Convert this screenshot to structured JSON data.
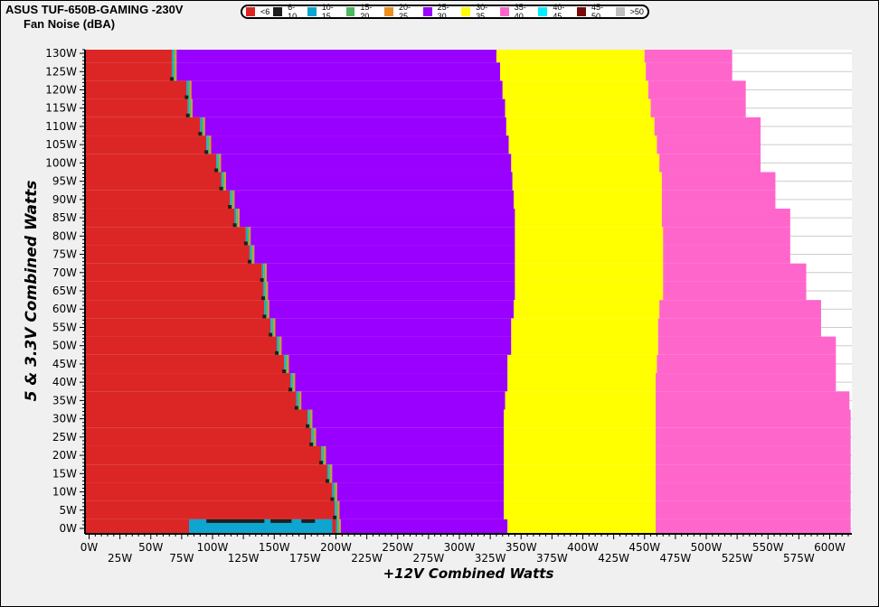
{
  "chart_data": {
    "type": "heatmap",
    "title": "ASUS TUF-650B-GAMING -230V",
    "subtitle": "Fan Noise (dBA)",
    "xlabel": "+12V Combined Watts",
    "ylabel": "5 & 3.3V Combined Watts",
    "xlim": [
      0,
      617
    ],
    "ylim": [
      0,
      131
    ],
    "x_ticks": [
      "0W",
      "25W",
      "50W",
      "75W",
      "100W",
      "125W",
      "150W",
      "175W",
      "200W",
      "225W",
      "250W",
      "275W",
      "300W",
      "325W",
      "350W",
      "375W",
      "400W",
      "425W",
      "450W",
      "475W",
      "500W",
      "525W",
      "550W",
      "575W",
      "600W"
    ],
    "x_tick_values": [
      0,
      25,
      50,
      75,
      100,
      125,
      150,
      175,
      200,
      225,
      250,
      275,
      300,
      325,
      350,
      375,
      400,
      425,
      450,
      475,
      500,
      525,
      550,
      575,
      600
    ],
    "y_ticks": [
      "0W",
      "5W",
      "10W",
      "15W",
      "20W",
      "25W",
      "30W",
      "35W",
      "40W",
      "45W",
      "50W",
      "55W",
      "60W",
      "65W",
      "70W",
      "75W",
      "80W",
      "85W",
      "90W",
      "95W",
      "100W",
      "105W",
      "110W",
      "115W",
      "120W",
      "125W",
      "130W"
    ],
    "y_tick_values": [
      0,
      5,
      10,
      15,
      20,
      25,
      30,
      35,
      40,
      45,
      50,
      55,
      60,
      65,
      70,
      75,
      80,
      85,
      90,
      95,
      100,
      105,
      110,
      115,
      120,
      125,
      130
    ],
    "grid": true,
    "legend_placement": "top",
    "legend": [
      {
        "label": "<6",
        "color": "#dc2626"
      },
      {
        "label": "6-10",
        "color": "#1e1e1e"
      },
      {
        "label": "10-15",
        "color": "#0ea5d0"
      },
      {
        "label": "15-20",
        "color": "#4cb860"
      },
      {
        "label": "20-25",
        "color": "#ea9020"
      },
      {
        "label": "25-30",
        "color": "#9900ff"
      },
      {
        "label": "30-35",
        "color": "#ffff00"
      },
      {
        "label": "35-40",
        "color": "#ff66cc"
      },
      {
        "label": "40-45",
        "color": "#00eeff"
      },
      {
        "label": "45-50",
        "color": "#7a0a0a"
      },
      {
        "label": ">50",
        "color": "#c0c0c0"
      }
    ],
    "rows_5v33_w": [
      0,
      5,
      10,
      15,
      20,
      25,
      30,
      35,
      40,
      45,
      50,
      55,
      60,
      65,
      70,
      75,
      80,
      85,
      90,
      95,
      100,
      105,
      110,
      115,
      120,
      125,
      130
    ],
    "boundary_lt6_to_25_30_w": [
      200,
      199,
      197,
      193,
      188,
      180,
      177,
      168,
      163,
      158,
      152,
      147,
      142,
      141,
      140,
      130,
      127,
      118,
      114,
      107,
      103,
      95,
      90,
      80,
      79,
      67,
      67
    ],
    "boundary_25_30_to_30_35_w": [
      339,
      336,
      336,
      336,
      336,
      336,
      336,
      337,
      339,
      339,
      342,
      342,
      344,
      345,
      345,
      345,
      345,
      345,
      344,
      343,
      342,
      340,
      338,
      337,
      335,
      333,
      330
    ],
    "boundary_30_35_to_35_40_w": [
      459,
      459,
      459,
      459,
      459,
      459,
      459,
      459,
      459,
      460,
      461,
      461,
      462,
      465,
      465,
      465,
      465,
      464,
      464,
      464,
      462,
      460,
      458,
      455,
      453,
      451,
      450
    ],
    "max_load_12v_w": [
      617,
      617,
      617,
      617,
      617,
      617,
      617,
      616,
      605,
      605,
      605,
      593,
      593,
      581,
      581,
      568,
      568,
      568,
      556,
      556,
      544,
      544,
      544,
      532,
      532,
      521,
      521
    ],
    "bottom_row_10_15_range_w": [
      81,
      197
    ],
    "bottom_row_6_10_ranges_w": [
      [
        95,
        142
      ],
      [
        147,
        164
      ],
      [
        172,
        183
      ]
    ]
  }
}
